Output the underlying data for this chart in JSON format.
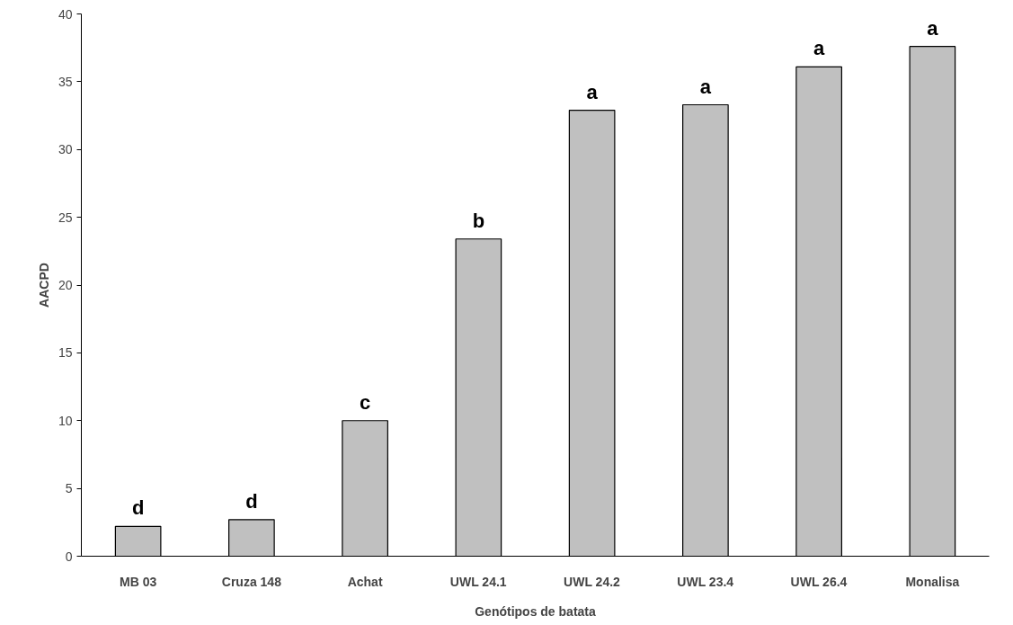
{
  "chart_data": {
    "type": "bar",
    "xlabel": "Genótipos de batata",
    "ylabel": "AACPD",
    "categories": [
      "MB 03",
      "Cruza 148",
      "Achat",
      "UWL 24.1",
      "UWL 24.2",
      "UWL 23.4",
      "UWL 26.4",
      "Monalisa"
    ],
    "values": [
      2.2,
      2.7,
      10.0,
      23.4,
      32.9,
      33.3,
      36.1,
      37.6
    ],
    "color": "#c0c0c0",
    "ylim": [
      0,
      40
    ],
    "yticks": [
      0,
      5,
      10,
      15,
      20,
      25,
      30,
      35,
      40
    ],
    "annotations": [
      {
        "text": "d",
        "x": "MB 03",
        "y": 2.2
      },
      {
        "text": "d",
        "x": "Cruza 148",
        "y": 2.7
      },
      {
        "text": "c",
        "x": "Achat",
        "y": 10.0
      },
      {
        "text": "b",
        "x": "UWL 24.1",
        "y": 23.4
      },
      {
        "text": "a",
        "x": "UWL 24.2",
        "y": 32.9
      },
      {
        "text": "a",
        "x": "UWL 23.4",
        "y": 33.3
      },
      {
        "text": "a",
        "x": "UWL 26.4",
        "y": 36.1
      },
      {
        "text": "a",
        "x": "Monalisa",
        "y": 37.6
      }
    ]
  }
}
